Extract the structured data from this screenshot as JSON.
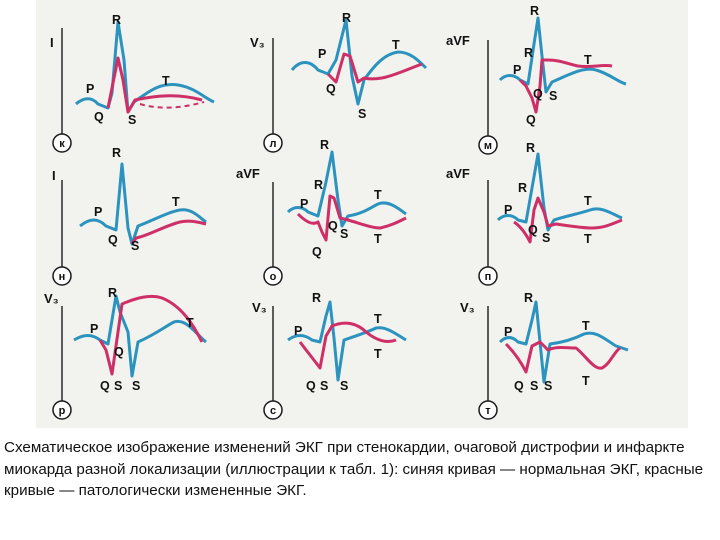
{
  "figure": {
    "colors": {
      "normal": "#2c93bf",
      "pathologic": "#cf2f67",
      "axis": "#1a1a1a",
      "background": "#f2f3ee"
    },
    "panels": [
      {
        "id": "к",
        "lead": "I",
        "waves": [
          "R",
          "P",
          "Q",
          "S",
          "T"
        ]
      },
      {
        "id": "л",
        "lead": "V₃",
        "waves": [
          "R",
          "P",
          "T",
          "Q",
          "S"
        ]
      },
      {
        "id": "м",
        "lead": "aVF",
        "waves": [
          "R",
          "R",
          "P",
          "T",
          "Q",
          "S",
          "Q"
        ]
      },
      {
        "id": "н",
        "lead": "I",
        "waves": [
          "R",
          "P",
          "T",
          "Q",
          "S"
        ]
      },
      {
        "id": "о",
        "lead": "aVF",
        "waves": [
          "R",
          "R",
          "P",
          "T",
          "Q",
          "S",
          "T",
          "Q"
        ]
      },
      {
        "id": "п",
        "lead": "aVF",
        "waves": [
          "R",
          "R",
          "P",
          "T",
          "Q",
          "S",
          "T"
        ]
      },
      {
        "id": "р",
        "lead": "V₃",
        "waves": [
          "R",
          "P",
          "T",
          "Q",
          "Q",
          "S",
          "S"
        ]
      },
      {
        "id": "с",
        "lead": "V₃",
        "waves": [
          "R",
          "P",
          "T",
          "T",
          "Q",
          "S",
          "S"
        ]
      },
      {
        "id": "т",
        "lead": "V₃",
        "waves": [
          "R",
          "P",
          "T",
          "Q",
          "S",
          "S",
          "T"
        ]
      }
    ]
  },
  "caption": "Схематическое изображение изменений ЭКГ при стенокардии, очаговой дистрофии и инфаркте миокарда разной локализации (иллюстрации к табл. 1): синяя кривая — нормальная ЭКГ, красные кривые — патологически измененные ЭКГ."
}
